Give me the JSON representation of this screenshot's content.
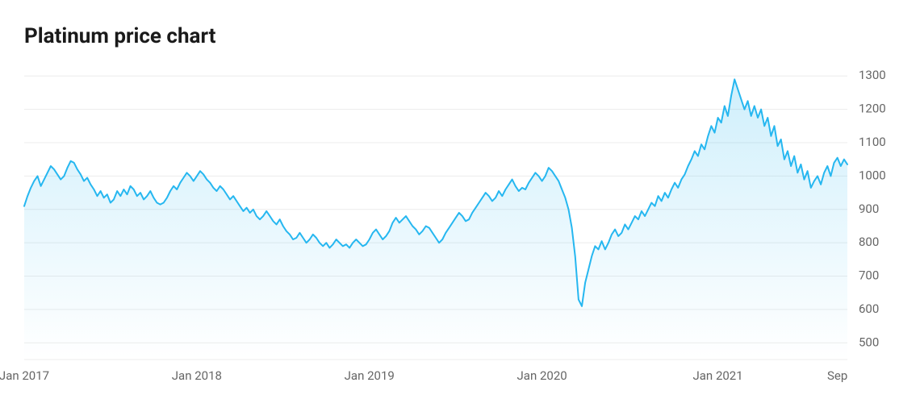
{
  "chart": {
    "type": "area",
    "title": "Platinum price chart",
    "title_fontsize": 26,
    "title_color": "#1a1a1a",
    "background_color": "#ffffff",
    "grid_color": "#ececec",
    "line_color": "#26b7f0",
    "line_width": 2,
    "area_fill_top": "rgba(38,183,240,0.22)",
    "area_fill_bottom": "rgba(38,183,240,0.0)",
    "tick_label_color": "#666666",
    "tick_label_fontsize": 15,
    "y_axis": {
      "min": 450,
      "max": 1320,
      "ticks": [
        500,
        600,
        700,
        800,
        900,
        1000,
        1100,
        1200,
        1300
      ],
      "grid": true,
      "position": "right"
    },
    "x_axis": {
      "ticks": [
        {
          "x": 0,
          "label": "Jan 2017"
        },
        {
          "x": 52,
          "label": "Jan 2018"
        },
        {
          "x": 104,
          "label": "Jan 2019"
        },
        {
          "x": 156,
          "label": "Jan 2020"
        },
        {
          "x": 209,
          "label": "Jan 2021"
        },
        {
          "x": 245,
          "label": "Sep"
        }
      ]
    },
    "series": {
      "name": "Platinum price",
      "x_min": 0,
      "x_max": 248,
      "values": [
        910,
        940,
        965,
        985,
        1000,
        970,
        990,
        1010,
        1030,
        1020,
        1005,
        990,
        1000,
        1025,
        1045,
        1040,
        1020,
        1005,
        985,
        995,
        975,
        960,
        940,
        955,
        935,
        945,
        920,
        930,
        955,
        940,
        960,
        945,
        970,
        960,
        940,
        950,
        930,
        940,
        955,
        935,
        920,
        915,
        920,
        935,
        955,
        970,
        960,
        980,
        995,
        1010,
        1000,
        985,
        1000,
        1015,
        1005,
        990,
        980,
        965,
        955,
        970,
        960,
        945,
        930,
        940,
        925,
        910,
        895,
        905,
        890,
        900,
        880,
        870,
        880,
        895,
        880,
        865,
        855,
        870,
        850,
        835,
        825,
        810,
        815,
        830,
        815,
        800,
        810,
        825,
        815,
        800,
        790,
        800,
        785,
        795,
        810,
        800,
        790,
        795,
        785,
        800,
        810,
        800,
        790,
        795,
        810,
        830,
        840,
        825,
        810,
        820,
        835,
        860,
        875,
        860,
        870,
        880,
        865,
        850,
        840,
        825,
        835,
        850,
        845,
        830,
        815,
        800,
        810,
        830,
        845,
        860,
        875,
        890,
        880,
        865,
        870,
        890,
        905,
        920,
        935,
        950,
        940,
        925,
        935,
        955,
        940,
        960,
        975,
        990,
        970,
        955,
        965,
        960,
        980,
        995,
        1010,
        1000,
        985,
        1000,
        1025,
        1015,
        1000,
        985,
        960,
        935,
        900,
        845,
        760,
        630,
        610,
        680,
        720,
        760,
        790,
        780,
        805,
        780,
        800,
        825,
        840,
        820,
        830,
        855,
        840,
        860,
        880,
        870,
        895,
        880,
        900,
        920,
        910,
        940,
        925,
        950,
        935,
        960,
        980,
        965,
        990,
        1005,
        1030,
        1050,
        1075,
        1060,
        1095,
        1080,
        1120,
        1150,
        1130,
        1175,
        1160,
        1210,
        1180,
        1240,
        1290,
        1260,
        1230,
        1200,
        1225,
        1180,
        1210,
        1175,
        1200,
        1150,
        1175,
        1120,
        1150,
        1090,
        1110,
        1050,
        1075,
        1030,
        1060,
        1010,
        1035,
        990,
        1015,
        965,
        985,
        1000,
        975,
        1010,
        1030,
        1000,
        1040,
        1055,
        1030,
        1050,
        1035
      ]
    }
  }
}
